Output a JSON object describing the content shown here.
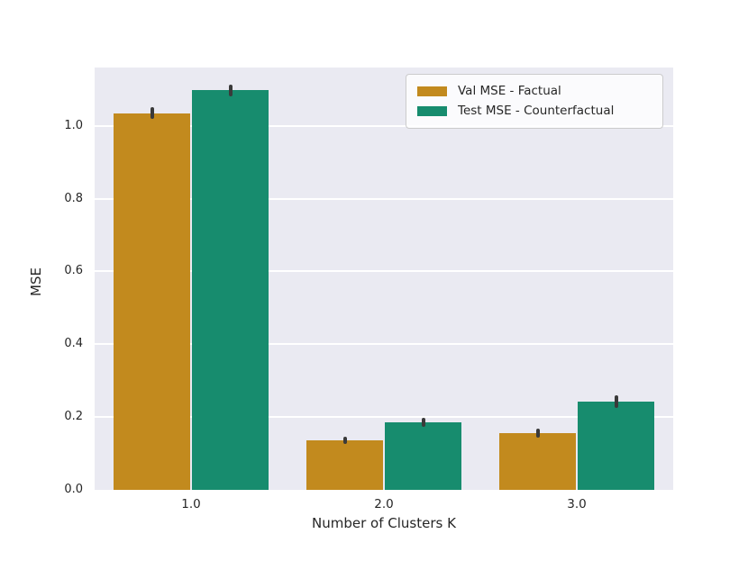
{
  "figure": {
    "background": "#ffffff",
    "plot_background": "#eaeaf2",
    "grid_color": "#ffffff",
    "text_color": "#262626",
    "error_bar_color": "#3a3a3a",
    "legend_border_color": "#cccccc"
  },
  "chart_data": {
    "type": "bar",
    "title": "",
    "xlabel": "Number of Clusters K",
    "ylabel": "MSE",
    "categories": [
      "1.0",
      "2.0",
      "3.0"
    ],
    "series": [
      {
        "name": "Val MSE - Factual",
        "color": "#c28a1e",
        "values": [
          1.035,
          0.135,
          0.155
        ],
        "errors": [
          0.015,
          0.01,
          0.012
        ]
      },
      {
        "name": "Test MSE - Counterfactual",
        "color": "#178c6e",
        "values": [
          1.097,
          0.186,
          0.243
        ],
        "errors": [
          0.015,
          0.013,
          0.017
        ]
      }
    ],
    "yticks": [
      0.0,
      0.2,
      0.4,
      0.6,
      0.8,
      1.0
    ],
    "ytick_labels": [
      "0.0",
      "0.2",
      "0.4",
      "0.6",
      "0.8",
      "1.0"
    ],
    "ylim": [
      0,
      1.16
    ],
    "grid": true,
    "legend_position": "upper right"
  }
}
